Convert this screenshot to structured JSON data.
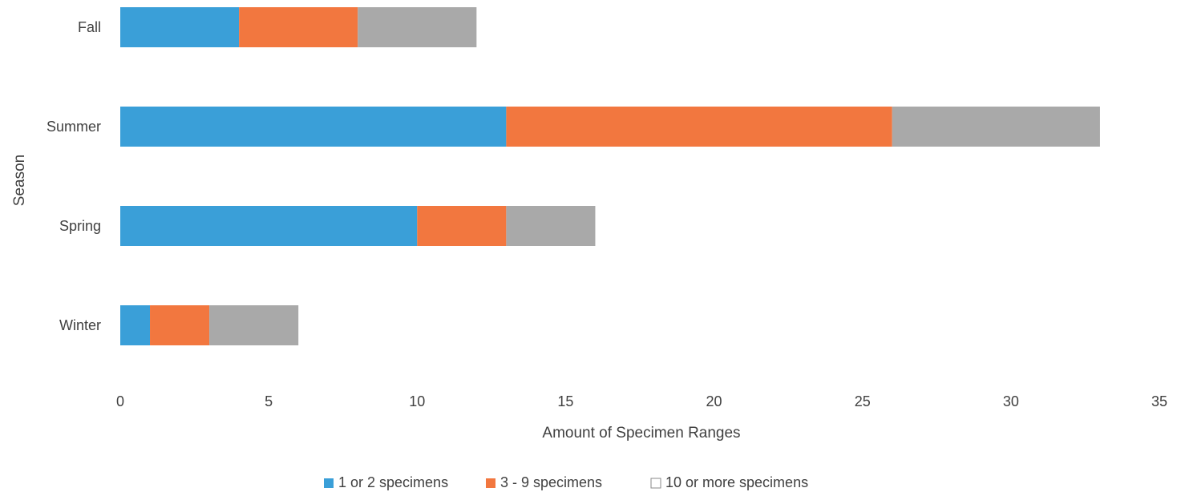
{
  "chart_data": {
    "type": "bar",
    "orientation": "horizontal",
    "stacked": true,
    "title": "",
    "xlabel": "Amount of Specimen Ranges",
    "ylabel": "Season",
    "xlim": [
      0,
      35
    ],
    "xticks": [
      0,
      5,
      10,
      15,
      20,
      25,
      30,
      35
    ],
    "categories": [
      "Fall",
      "Summer",
      "Spring",
      "Winter"
    ],
    "series": [
      {
        "name": "1 or 2 specimens",
        "values": [
          4,
          13,
          10,
          1
        ],
        "color": "#3a9fd8"
      },
      {
        "name": "3 - 9 specimens",
        "values": [
          4,
          13,
          3,
          2
        ],
        "color": "#f2773f"
      },
      {
        "name": "10 or more specimens",
        "values": [
          4,
          7,
          3,
          3
        ],
        "color": "#a9a9a9"
      }
    ],
    "grid": false,
    "legend_position": "bottom"
  }
}
